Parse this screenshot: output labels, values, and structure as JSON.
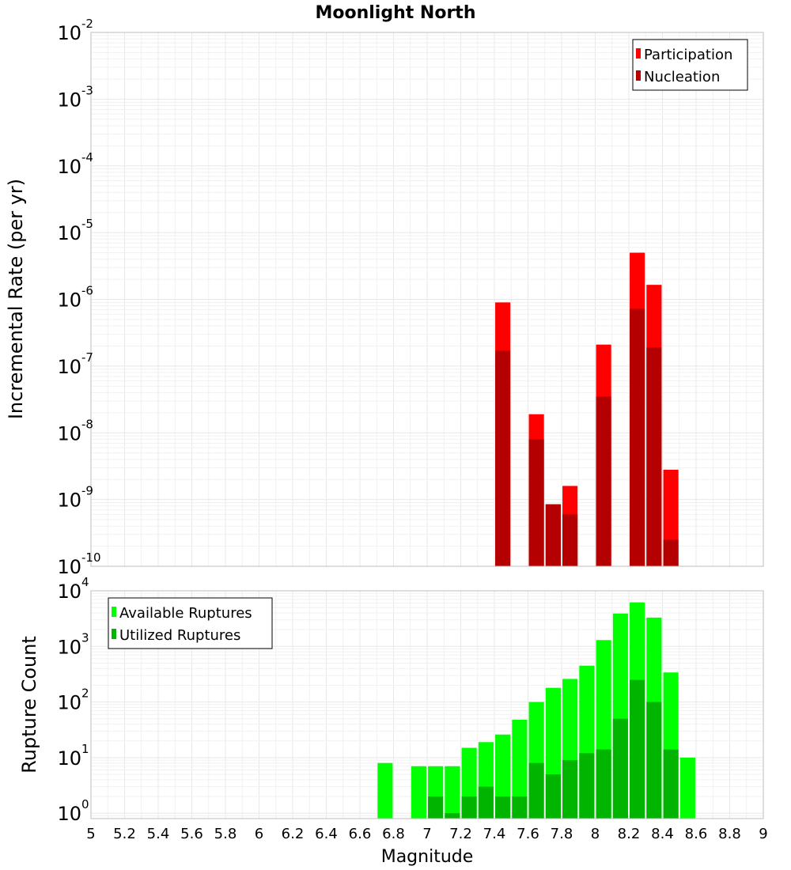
{
  "chart_data": [
    {
      "type": "bar",
      "title": "Moonlight North",
      "xlabel": "",
      "ylabel": "Incremental Rate (per yr)",
      "yscale": "log",
      "xlim": [
        5,
        9
      ],
      "ylim": [
        1e-10,
        0.01
      ],
      "yticks": [
        {
          "base": "10",
          "exp": "-10"
        },
        {
          "base": "10",
          "exp": "-9"
        },
        {
          "base": "10",
          "exp": "-8"
        },
        {
          "base": "10",
          "exp": "-7"
        },
        {
          "base": "10",
          "exp": "-6"
        },
        {
          "base": "10",
          "exp": "-5"
        },
        {
          "base": "10",
          "exp": "-4"
        },
        {
          "base": "10",
          "exp": "-3"
        },
        {
          "base": "10",
          "exp": "-2"
        }
      ],
      "legend_position": "top-right",
      "bar_width": 0.09,
      "series": [
        {
          "name": "Participation",
          "color": "#ff0000",
          "x": [
            7.45,
            7.65,
            7.75,
            7.85,
            8.05,
            8.25,
            8.35,
            8.45
          ],
          "values": [
            9e-07,
            1.9e-08,
            8.5e-10,
            1.6e-09,
            2.1e-07,
            5e-06,
            1.65e-06,
            2.8e-09
          ]
        },
        {
          "name": "Nucleation",
          "color": "#b40000",
          "x": [
            7.45,
            7.65,
            7.75,
            7.85,
            8.05,
            8.25,
            8.35,
            8.45
          ],
          "values": [
            1.7e-07,
            8e-09,
            8.5e-10,
            6e-10,
            3.5e-08,
            7.2e-07,
            1.9e-07,
            2.5e-10
          ]
        }
      ]
    },
    {
      "type": "bar",
      "title": "",
      "xlabel": "Magnitude",
      "ylabel": "Rupture Count",
      "yscale": "log",
      "xlim": [
        5,
        9
      ],
      "ylim": [
        0.8,
        10000
      ],
      "yticks": [
        {
          "base": "10",
          "exp": "0"
        },
        {
          "base": "10",
          "exp": "1"
        },
        {
          "base": "10",
          "exp": "2"
        },
        {
          "base": "10",
          "exp": "3"
        },
        {
          "base": "10",
          "exp": "4"
        }
      ],
      "xticks": [
        "5",
        "5.2",
        "5.4",
        "5.6",
        "5.8",
        "6",
        "6.2",
        "6.4",
        "6.6",
        "6.8",
        "7",
        "7.2",
        "7.4",
        "7.6",
        "7.8",
        "8",
        "8.2",
        "8.4",
        "8.6",
        "8.8",
        "9"
      ],
      "legend_position": "top-left",
      "bar_width": 0.09,
      "series": [
        {
          "name": "Available Ruptures",
          "color": "#00ff00",
          "x": [
            6.75,
            6.95,
            7.05,
            7.15,
            7.25,
            7.35,
            7.45,
            7.55,
            7.65,
            7.75,
            7.85,
            7.95,
            8.05,
            8.15,
            8.25,
            8.35,
            8.45,
            8.55
          ],
          "values": [
            8,
            7,
            7,
            7,
            15,
            19,
            26,
            48,
            100,
            180,
            260,
            450,
            1300,
            3900,
            6200,
            3300,
            340,
            10
          ]
        },
        {
          "name": "Utilized Ruptures",
          "color": "#00b400",
          "x": [
            7.05,
            7.15,
            7.25,
            7.35,
            7.45,
            7.55,
            7.65,
            7.75,
            7.85,
            7.95,
            8.05,
            8.15,
            8.25,
            8.35,
            8.45
          ],
          "values": [
            2,
            1,
            2,
            3,
            2,
            2,
            8,
            5,
            9,
            12,
            14,
            50,
            250,
            100,
            14
          ]
        }
      ]
    }
  ]
}
